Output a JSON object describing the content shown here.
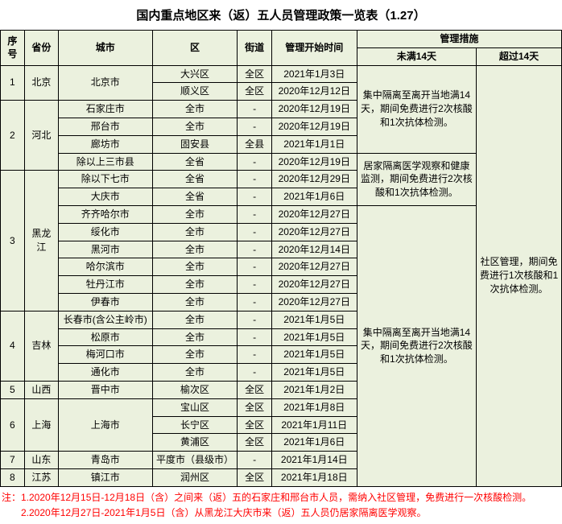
{
  "title": "国内重点地区来（返）五人员管理政策一览表（1.27）",
  "headers": {
    "seq": "序号",
    "province": "省份",
    "city": "城市",
    "district": "区",
    "street": "街道",
    "start": "管理开始时间",
    "measures": "管理措施",
    "under14": "未满14天",
    "over14": "超过14天"
  },
  "rows": [
    {
      "seq": "1",
      "prov": "北京",
      "city": "北京市",
      "dist": "大兴区",
      "street": "全区",
      "date": "2021年1月3日"
    },
    {
      "seq": "",
      "prov": "",
      "city": "",
      "dist": "顺义区",
      "street": "全区",
      "date": "2020年12月12日"
    },
    {
      "seq": "2",
      "prov": "河北",
      "city": "石家庄市",
      "dist": "全市",
      "street": "-",
      "date": "2020年12月19日"
    },
    {
      "seq": "",
      "prov": "",
      "city": "邢台市",
      "dist": "全市",
      "street": "-",
      "date": "2020年12月19日"
    },
    {
      "seq": "",
      "prov": "",
      "city": "廊坊市",
      "dist": "固安县",
      "street": "全县",
      "date": "2021年1月1日"
    },
    {
      "seq": "",
      "prov": "",
      "city": "除以上三市县",
      "dist": "全省",
      "street": "-",
      "date": "2020年12月19日"
    },
    {
      "seq": "3",
      "prov": "黑龙江",
      "city": "除以下七市",
      "dist": "全省",
      "street": "-",
      "date": "2020年12月29日"
    },
    {
      "seq": "",
      "prov": "",
      "city": "大庆市",
      "dist": "全省",
      "street": "-",
      "date": "2021年1月6日"
    },
    {
      "seq": "",
      "prov": "",
      "city": "齐齐哈尔市",
      "dist": "全市",
      "street": "-",
      "date": "2020年12月27日"
    },
    {
      "seq": "",
      "prov": "",
      "city": "绥化市",
      "dist": "全市",
      "street": "-",
      "date": "2020年12月27日"
    },
    {
      "seq": "",
      "prov": "",
      "city": "黑河市",
      "dist": "全市",
      "street": "-",
      "date": "2020年12月14日"
    },
    {
      "seq": "",
      "prov": "",
      "city": "哈尔滨市",
      "dist": "全市",
      "street": "-",
      "date": "2020年12月27日"
    },
    {
      "seq": "",
      "prov": "",
      "city": "牡丹江市",
      "dist": "全市",
      "street": "-",
      "date": "2020年12月27日"
    },
    {
      "seq": "",
      "prov": "",
      "city": "伊春市",
      "dist": "全市",
      "street": "-",
      "date": "2020年12月27日"
    },
    {
      "seq": "4",
      "prov": "吉林",
      "city": "长春市(含公主岭市)",
      "dist": "全市",
      "street": "-",
      "date": "2021年1月5日"
    },
    {
      "seq": "",
      "prov": "",
      "city": "松原市",
      "dist": "全市",
      "street": "-",
      "date": "2021年1月5日"
    },
    {
      "seq": "",
      "prov": "",
      "city": "梅河口市",
      "dist": "全市",
      "street": "-",
      "date": "2021年1月5日"
    },
    {
      "seq": "",
      "prov": "",
      "city": "通化市",
      "dist": "全市",
      "street": "-",
      "date": "2021年1月5日"
    },
    {
      "seq": "5",
      "prov": "山西",
      "city": "晋中市",
      "dist": "榆次区",
      "street": "全区",
      "date": "2021年1月2日"
    },
    {
      "seq": "6",
      "prov": "上海",
      "city": "上海市",
      "dist": "宝山区",
      "street": "全区",
      "date": "2021年1月8日"
    },
    {
      "seq": "",
      "prov": "",
      "city": "",
      "dist": "长宁区",
      "street": "全区",
      "date": "2021年1月11日"
    },
    {
      "seq": "",
      "prov": "",
      "city": "",
      "dist": "黄浦区",
      "street": "全区",
      "date": "2021年1月6日"
    },
    {
      "seq": "7",
      "prov": "山东",
      "city": "青岛市",
      "dist": "平度市（县级市）",
      "street": "-",
      "date": "2021年1月14日"
    },
    {
      "seq": "8",
      "prov": "江苏",
      "city": "镇江市",
      "dist": "润州区",
      "street": "全区",
      "date": "2021年1月18日"
    }
  ],
  "measureA": "集中隔离至离开当地满14天，期间免费进行2次核酸和1次抗体检测。",
  "measureB": "居家隔离医学观察和健康监测，期间免费进行2次核酸和1次抗体检测。",
  "measureC": "集中隔离至离开当地满14天，期间免费进行2次核酸和1次抗体检测。",
  "over14text": "社区管理，期间免费进行1次核酸和1次抗体检测。",
  "note1": "注：1.2020年12月15日-12月18日（含）之间来（返）五的石家庄和邢台市人员，需纳入社区管理，免费进行一次核酸检测。",
  "note2": "　　2.2020年12月27日-2021年1月5日（含）从黑龙江大庆市来（返）五人员仍居家隔离医学观察。"
}
